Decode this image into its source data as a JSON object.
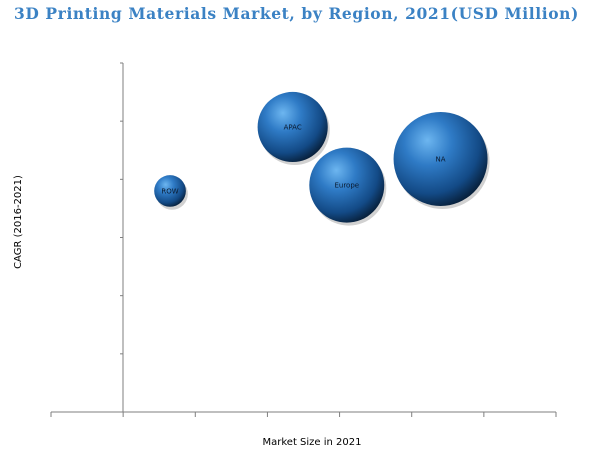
{
  "chart_data": {
    "type": "bubble",
    "title": "3D Printing Materials Market, by Region, 2021(USD Million)",
    "xlabel": "Market Size in 2021",
    "ylabel": "CAGR (2016-2021)",
    "xlim": [
      0,
      7
    ],
    "ylim": [
      0,
      6
    ],
    "grid": false,
    "legend": "none",
    "points": [
      {
        "label": "ROW",
        "x": 1.65,
        "y": 3.8,
        "size": 1
      },
      {
        "label": "APAC",
        "x": 3.35,
        "y": 4.9,
        "size": 4.9
      },
      {
        "label": "Europe",
        "x": 4.1,
        "y": 3.9,
        "size": 5.6
      },
      {
        "label": "NA",
        "x": 5.4,
        "y": 4.35,
        "size": 8.8
      }
    ],
    "colors": {
      "title": "#3b82c4",
      "bubble_light": "#5aa8e8",
      "bubble_mid": "#1c5fa8",
      "bubble_dark": "#071b33",
      "axis": "#7f7f7f"
    }
  }
}
